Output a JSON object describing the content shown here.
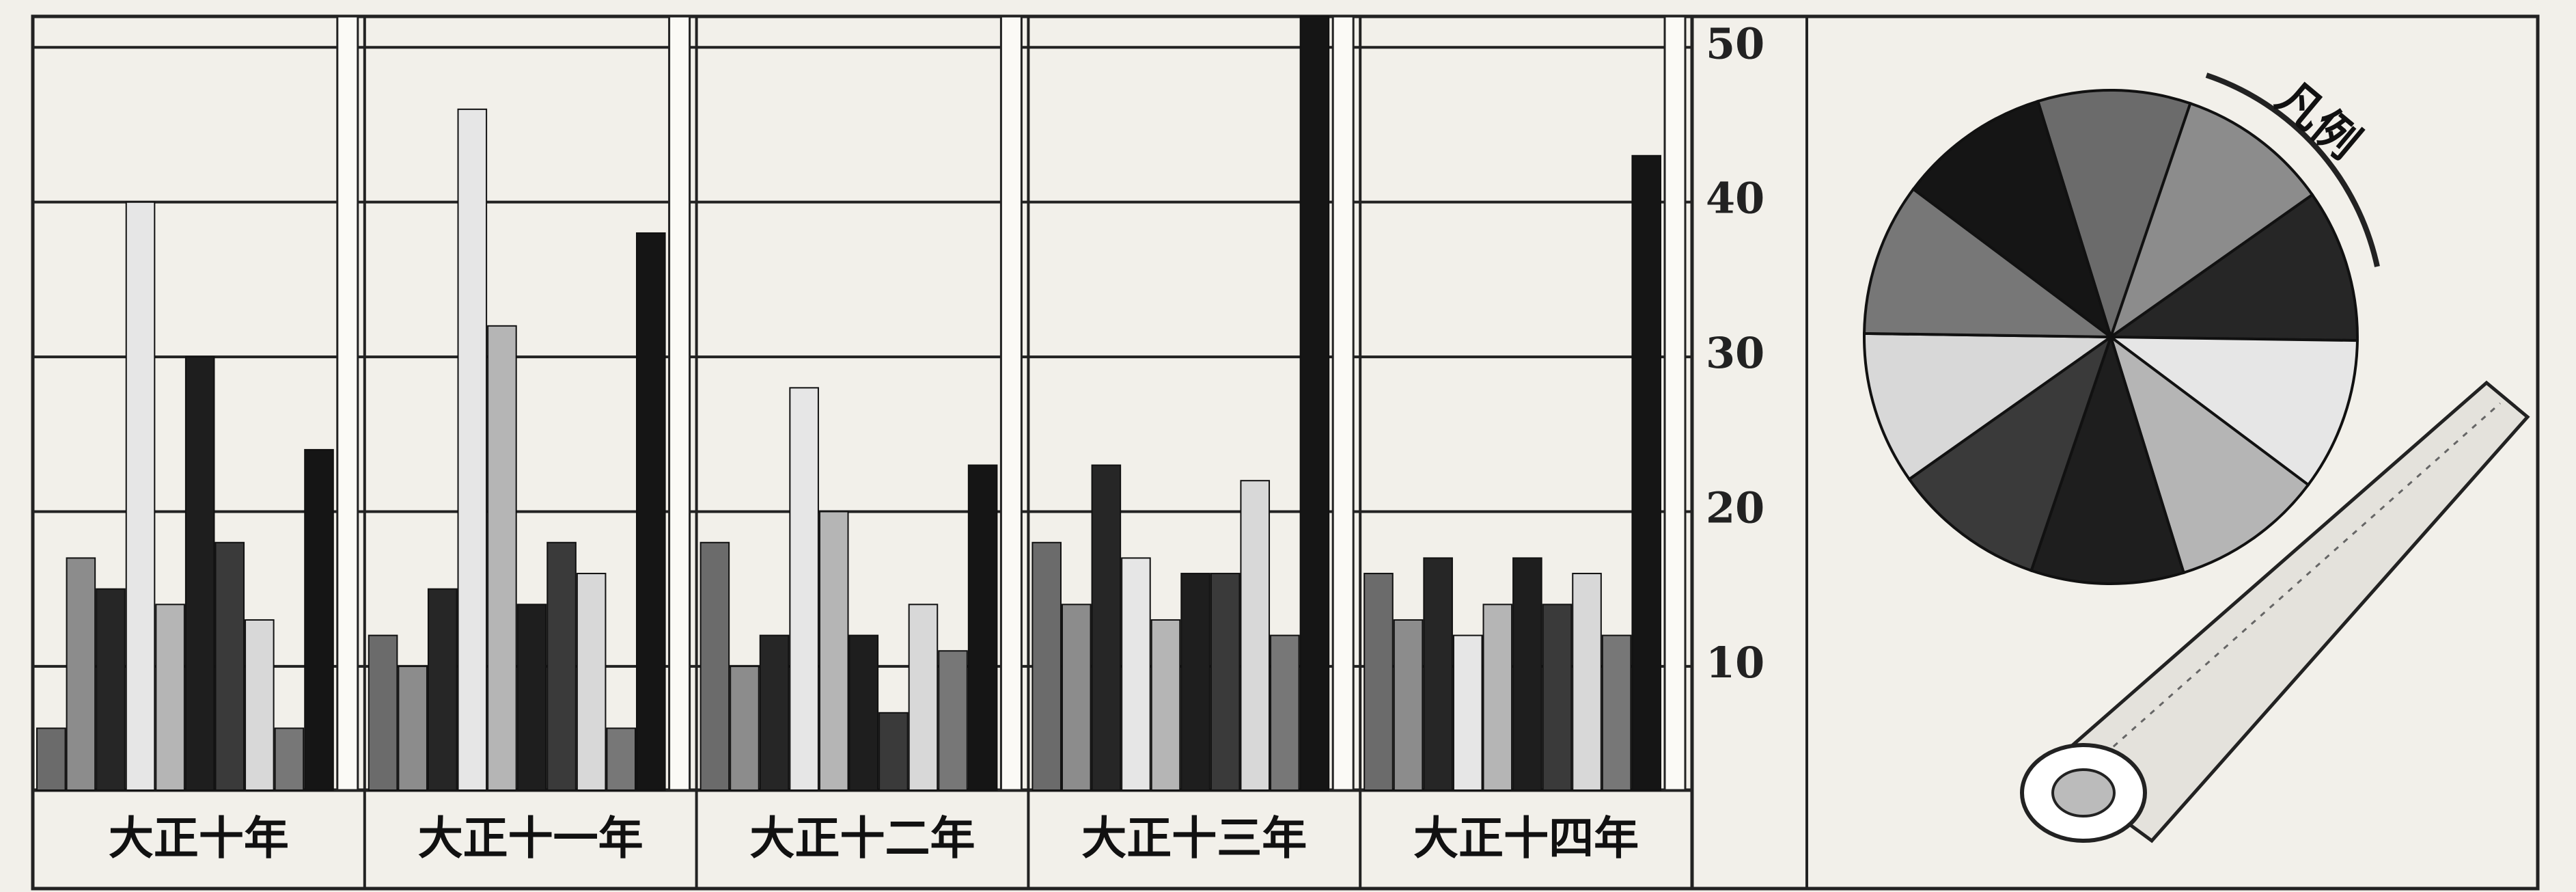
{
  "chart_data": {
    "type": "bar",
    "categories": [
      "大正十年",
      "大正十一年",
      "大正十二年",
      "大正十三年",
      "大正十四年"
    ],
    "series": [
      {
        "color": "#6b6b6b",
        "values": [
          6,
          12,
          18,
          18,
          16
        ]
      },
      {
        "color": "#8c8c8c",
        "values": [
          17,
          10,
          10,
          14,
          13
        ]
      },
      {
        "color": "#262626",
        "values": [
          15,
          15,
          12,
          23,
          17
        ]
      },
      {
        "color": "#e6e6e6",
        "values": [
          40,
          46,
          28,
          17,
          12
        ]
      },
      {
        "color": "#b5b5b5",
        "values": [
          14,
          32,
          20,
          13,
          14
        ]
      },
      {
        "color": "#1e1e1e",
        "values": [
          30,
          14,
          12,
          16,
          17
        ]
      },
      {
        "color": "#3a3a3a",
        "values": [
          18,
          18,
          7,
          16,
          14
        ]
      },
      {
        "color": "#d8d8d8",
        "values": [
          13,
          16,
          14,
          22,
          16
        ]
      },
      {
        "color": "#777777",
        "values": [
          6,
          6,
          11,
          12,
          12
        ]
      },
      {
        "color": "#151515",
        "values": [
          24,
          38,
          23,
          52,
          43
        ]
      }
    ],
    "ylim": [
      2,
      52
    ],
    "yticks": [
      10,
      20,
      30,
      40,
      50
    ],
    "grid": true,
    "legend_title": "凡例"
  }
}
